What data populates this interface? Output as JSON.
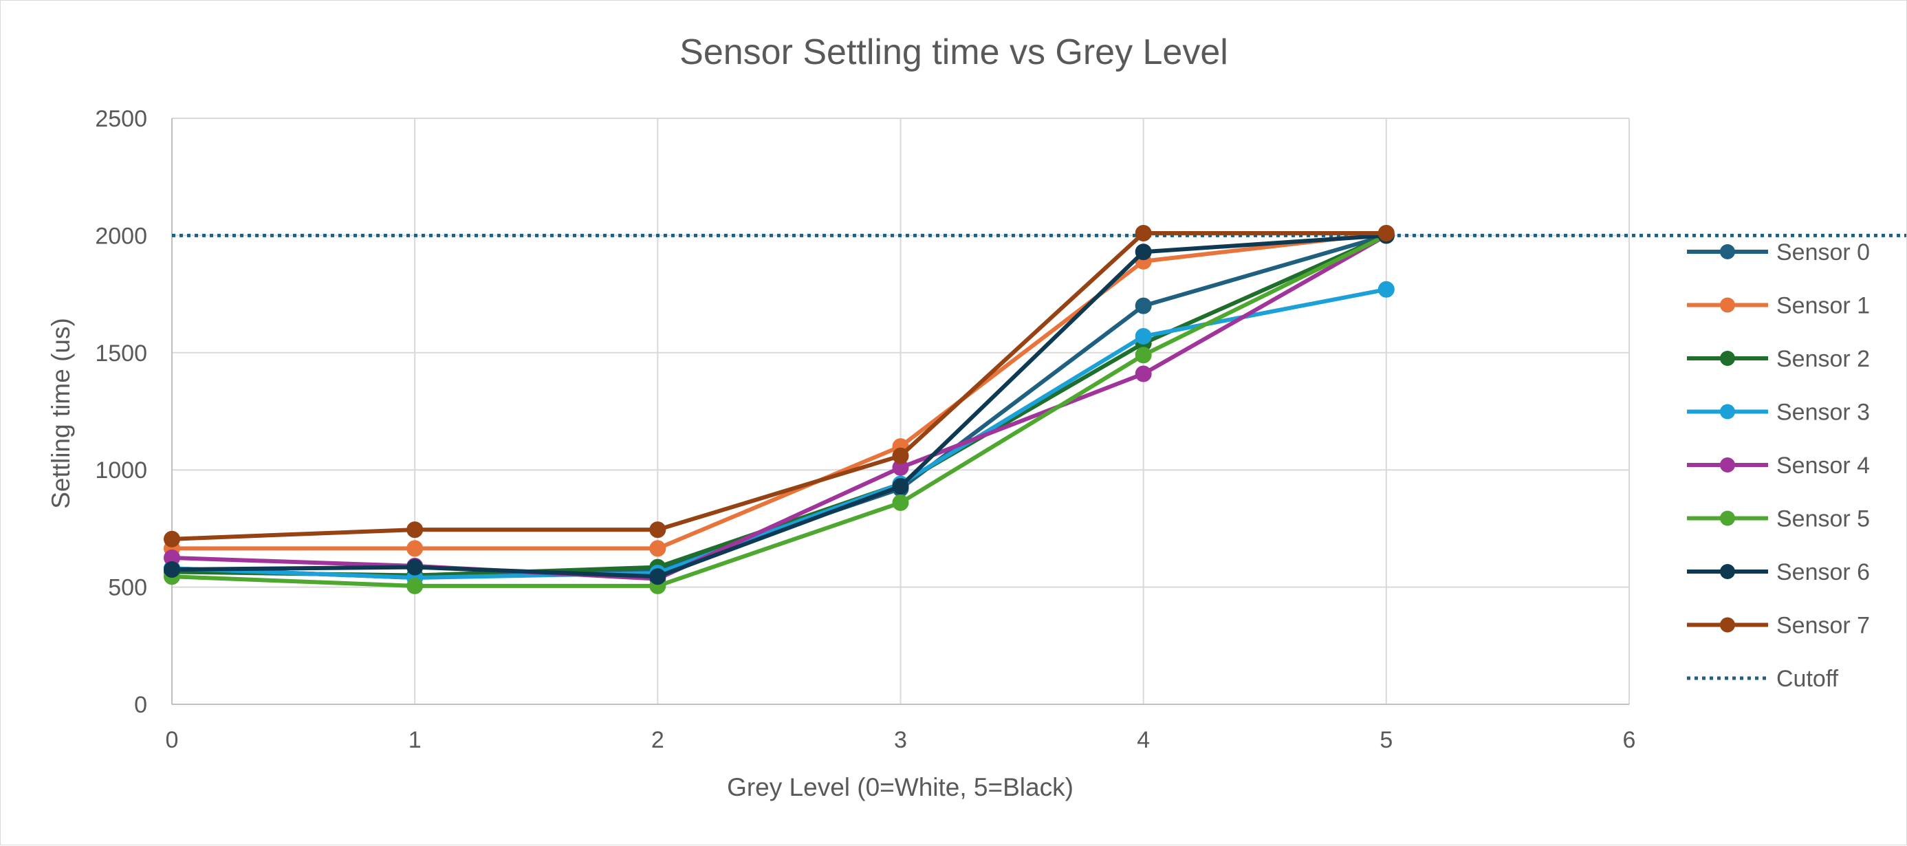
{
  "chart_data": {
    "type": "line",
    "title": "Sensor Settling time vs Grey Level",
    "xlabel": "Grey Level (0=White, 5=Black)",
    "ylabel": "Settling time (us)",
    "xlim": [
      0,
      6
    ],
    "ylim": [
      0,
      2500
    ],
    "x_ticks": [
      0,
      1,
      2,
      3,
      4,
      5,
      6
    ],
    "y_ticks": [
      0,
      500,
      1000,
      1500,
      2000,
      2500
    ],
    "grid": true,
    "legend_position": "right",
    "x": [
      0,
      1,
      2,
      3,
      4,
      5
    ],
    "series": [
      {
        "name": "Sensor 0",
        "color": "#1f5f7f",
        "values": [
          580,
          540,
          570,
          920,
          1700,
          2000
        ]
      },
      {
        "name": "Sensor 1",
        "color": "#e8743b",
        "values": [
          665,
          665,
          665,
          1100,
          1890,
          2010
        ]
      },
      {
        "name": "Sensor 2",
        "color": "#1f6e2b",
        "values": [
          565,
          550,
          585,
          940,
          1540,
          2000
        ]
      },
      {
        "name": "Sensor 3",
        "color": "#1ca0d8",
        "values": [
          580,
          540,
          560,
          940,
          1570,
          1770
        ]
      },
      {
        "name": "Sensor 4",
        "color": "#a1349a",
        "values": [
          625,
          590,
          535,
          1010,
          1410,
          2000
        ]
      },
      {
        "name": "Sensor 5",
        "color": "#4ea72e",
        "values": [
          545,
          505,
          505,
          860,
          1490,
          2000
        ]
      },
      {
        "name": "Sensor 6",
        "color": "#0d3a52",
        "values": [
          575,
          585,
          545,
          930,
          1930,
          2000
        ]
      },
      {
        "name": "Sensor 7",
        "color": "#964213",
        "values": [
          705,
          745,
          745,
          1060,
          2010,
          2010
        ]
      }
    ],
    "cutoff": {
      "name": "Cutoff",
      "value": 2000,
      "color": "#1f5f7f",
      "style": "dotted"
    }
  }
}
